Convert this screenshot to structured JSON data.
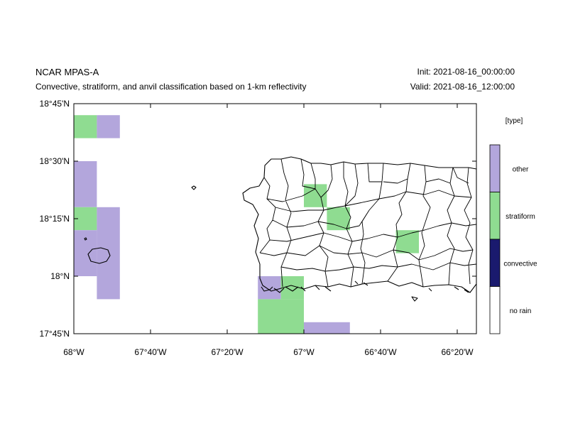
{
  "header": {
    "title": "NCAR MPAS-A",
    "subtitle": "Convective, stratiform, and anvil classification based on 1-km reflectivity",
    "init": "Init: 2021-08-16_00:00:00",
    "valid": "Valid: 2021-08-16_12:00:00"
  },
  "map": {
    "region": "Puerto Rico and surrounding waters",
    "lon_range": [
      -68.0,
      -66.25
    ],
    "lat_range": [
      17.75,
      18.75
    ],
    "x_ticks": [
      {
        "lon": -68.0,
        "label": "68°W"
      },
      {
        "lon": -67.6667,
        "label": "67°40'W"
      },
      {
        "lon": -67.3333,
        "label": "67°20'W"
      },
      {
        "lon": -67.0,
        "label": "67°W"
      },
      {
        "lon": -66.6667,
        "label": "66°40'W"
      },
      {
        "lon": -66.3333,
        "label": "66°20'W"
      }
    ],
    "y_ticks": [
      {
        "lat": 18.75,
        "label": "18°45'N"
      },
      {
        "lat": 18.5,
        "label": "18°30'N"
      },
      {
        "lat": 18.25,
        "label": "18°15'N"
      },
      {
        "lat": 18.0,
        "label": "18°N"
      },
      {
        "lat": 17.75,
        "label": "17°45'N"
      }
    ],
    "cells": [
      {
        "lon": [
          -68.0,
          -67.9
        ],
        "lat": [
          18.6,
          18.7
        ],
        "type": "stratiform"
      },
      {
        "lon": [
          -67.9,
          -67.8
        ],
        "lat": [
          18.6,
          18.7
        ],
        "type": "other"
      },
      {
        "lon": [
          -68.0,
          -67.9
        ],
        "lat": [
          18.3,
          18.5
        ],
        "type": "other"
      },
      {
        "lon": [
          -68.0,
          -67.9
        ],
        "lat": [
          18.2,
          18.3
        ],
        "type": "stratiform"
      },
      {
        "lon": [
          -68.0,
          -67.9
        ],
        "lat": [
          18.0,
          18.2
        ],
        "type": "other"
      },
      {
        "lon": [
          -67.9,
          -67.8
        ],
        "lat": [
          17.9,
          18.3
        ],
        "type": "other"
      },
      {
        "lon": [
          -67.2,
          -67.1
        ],
        "lat": [
          17.9,
          18.0
        ],
        "type": "other"
      },
      {
        "lon": [
          -67.1,
          -67.0
        ],
        "lat": [
          17.9,
          18.0
        ],
        "type": "stratiform"
      },
      {
        "lon": [
          -67.2,
          -67.0
        ],
        "lat": [
          17.75,
          17.9
        ],
        "type": "stratiform"
      },
      {
        "lon": [
          -67.0,
          -66.8
        ],
        "lat": [
          17.75,
          17.8
        ],
        "type": "other"
      },
      {
        "lon": [
          -67.0,
          -66.9
        ],
        "lat": [
          18.3,
          18.4
        ],
        "type": "stratiform"
      },
      {
        "lon": [
          -66.9,
          -66.8
        ],
        "lat": [
          18.2,
          18.3
        ],
        "type": "stratiform"
      },
      {
        "lon": [
          -66.6,
          -66.5
        ],
        "lat": [
          18.1,
          18.2
        ],
        "type": "stratiform"
      }
    ]
  },
  "legend": {
    "title": "[type]",
    "items": [
      {
        "label": "other",
        "color": "#b3a6dc"
      },
      {
        "label": "stratiform",
        "color": "#8fdc91"
      },
      {
        "label": "convective",
        "color": "#1a1a6e"
      },
      {
        "label": "no rain",
        "color": "#ffffff"
      }
    ]
  }
}
